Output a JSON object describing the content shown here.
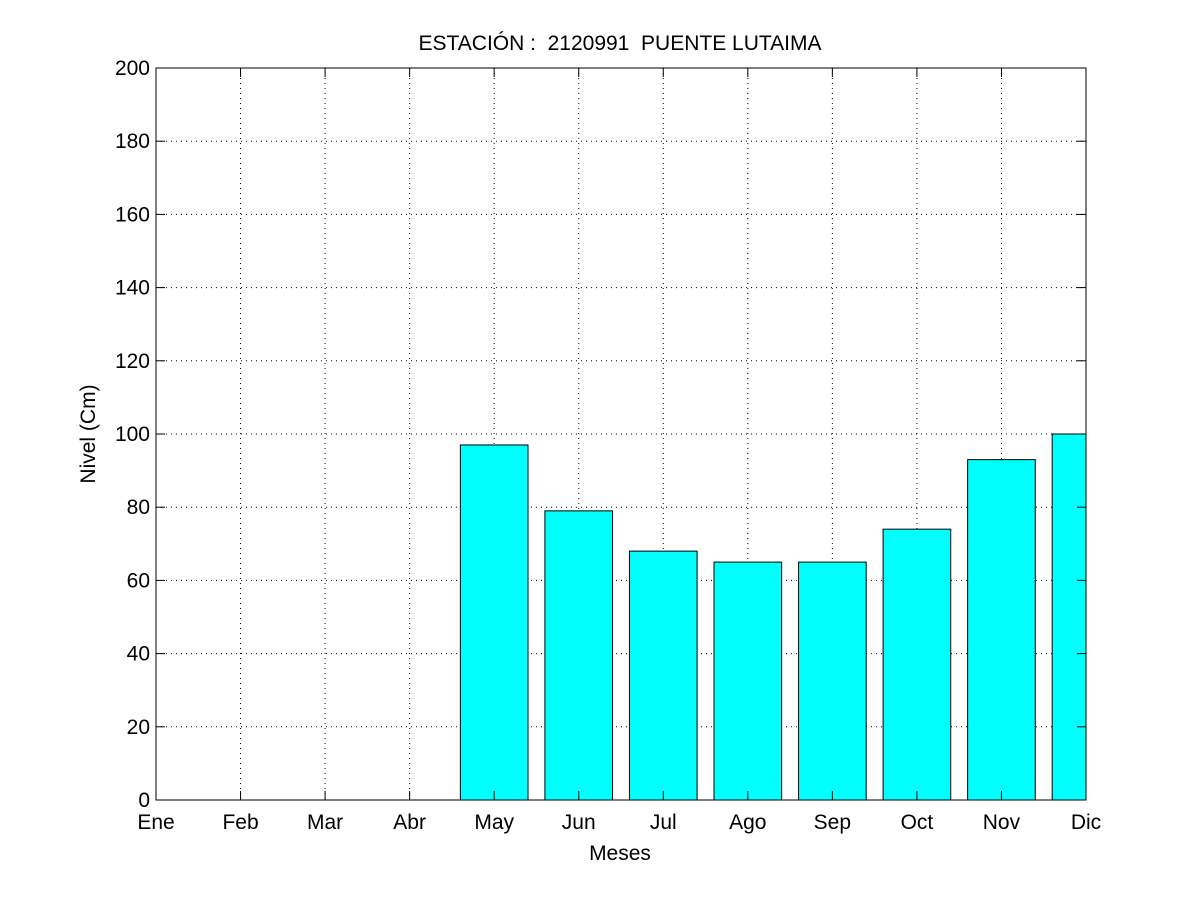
{
  "chart_data": {
    "type": "bar",
    "title": "ESTACIÓN :  2120991  PUENTE LUTAIMA",
    "xlabel": "Meses",
    "ylabel": "Nivel (Cm)",
    "categories": [
      "Ene",
      "Feb",
      "Mar",
      "Abr",
      "May",
      "Jun",
      "Jul",
      "Ago",
      "Sep",
      "Oct",
      "Nov",
      "Dic"
    ],
    "values": [
      null,
      null,
      null,
      null,
      97,
      79,
      68,
      65,
      65,
      74,
      93,
      100
    ],
    "ylim": [
      0,
      200
    ],
    "yticks": [
      0,
      20,
      40,
      60,
      80,
      100,
      120,
      140,
      160,
      180,
      200
    ],
    "xlim": [
      1,
      12
    ],
    "grid": true,
    "bar_color": "#00FFFF",
    "bar_edge_color": "#000000"
  }
}
